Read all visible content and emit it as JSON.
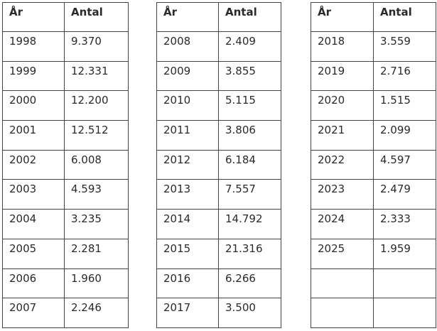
{
  "tables": [
    {
      "header": [
        "År",
        "Antal"
      ],
      "rows": [
        [
          "1998",
          "9.370"
        ],
        [
          "1999",
          "12.331"
        ],
        [
          "2000",
          "12.200"
        ],
        [
          "2001",
          "12.512"
        ],
        [
          "2002",
          "6.008"
        ],
        [
          "2003",
          "4.593"
        ],
        [
          "2004",
          "3.235"
        ],
        [
          "2005",
          "2.281"
        ],
        [
          "2006",
          "1.960"
        ],
        [
          "2007",
          "2.246"
        ]
      ]
    },
    {
      "header": [
        "År",
        "Antal"
      ],
      "rows": [
        [
          "2008",
          "2.409"
        ],
        [
          "2009",
          "3.855"
        ],
        [
          "2010",
          "5.115"
        ],
        [
          "2011",
          "3.806"
        ],
        [
          "2012",
          "6.184"
        ],
        [
          "2013",
          "7.557"
        ],
        [
          "2014",
          "14.792"
        ],
        [
          "2015",
          "21.316"
        ],
        [
          "2016",
          "6.266"
        ],
        [
          "2017",
          "3.500"
        ]
      ]
    },
    {
      "header": [
        "År",
        "Antal"
      ],
      "rows": [
        [
          "2018",
          "3.559"
        ],
        [
          "2019",
          "2.716"
        ],
        [
          "2020",
          "1.515"
        ],
        [
          "2021",
          "2.099"
        ],
        [
          "2022",
          "4.597"
        ],
        [
          "2023",
          "2.479"
        ],
        [
          "2024",
          "2.333"
        ],
        [
          "2025",
          "1.959"
        ]
      ]
    }
  ]
}
